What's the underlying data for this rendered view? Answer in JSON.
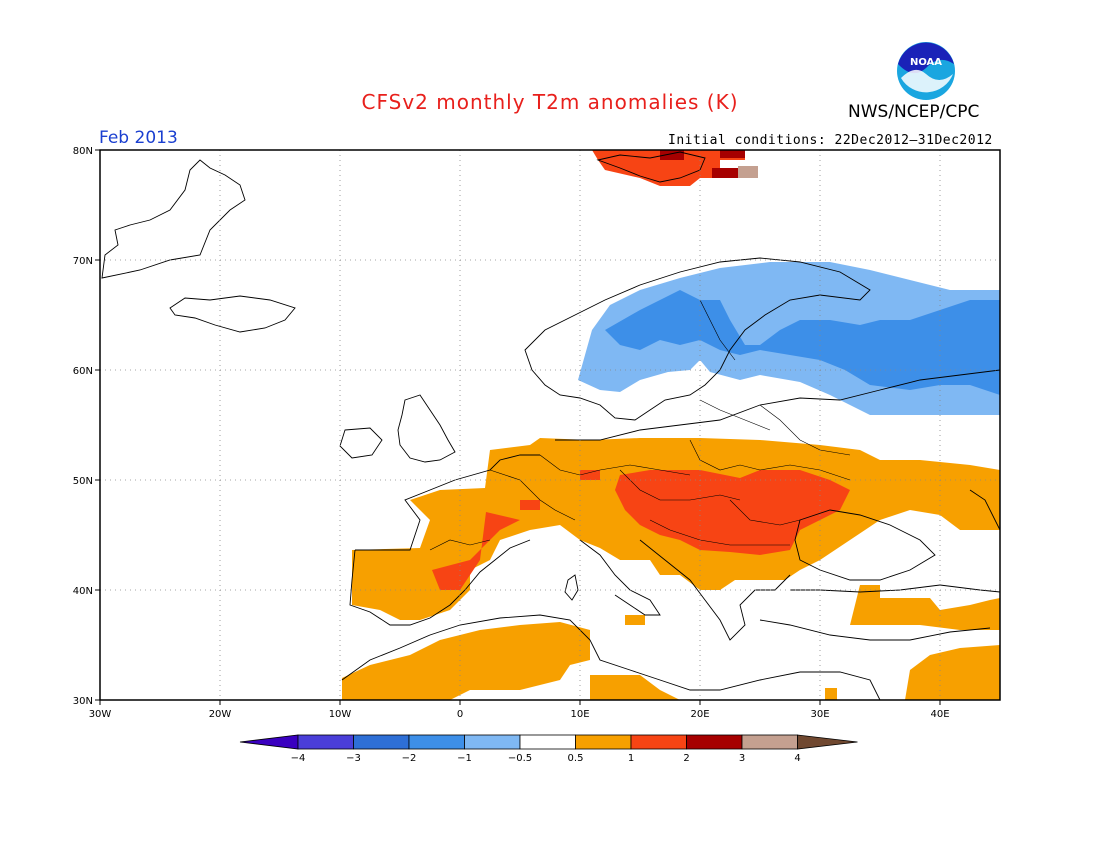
{
  "title": "CFSv2 monthly T2m anomalies (K)",
  "agency": "NWS/NCEP/CPC",
  "logo_text": "NOAA",
  "period": "Feb 2013",
  "initial_conditions": "Initial conditions: 22Dec2012–31Dec2012",
  "lon_ticks": [
    "30W",
    "20W",
    "10W",
    "0",
    "10E",
    "20E",
    "30E",
    "40E"
  ],
  "lat_ticks": [
    "30N",
    "40N",
    "50N",
    "60N",
    "70N",
    "80N"
  ],
  "colorbar": {
    "ticks": [
      "−4",
      "−3",
      "−2",
      "−1",
      "−0.5",
      "0.5",
      "1",
      "2",
      "3",
      "4"
    ],
    "colors": [
      "#3a00c0",
      "#4a3ed8",
      "#2e6fd6",
      "#3d8fe8",
      "#7fb8f3",
      "#ffffff",
      "#f7a000",
      "#f74414",
      "#a60000",
      "#c4a090",
      "#704830"
    ]
  },
  "map_extent": {
    "lon_min": -30,
    "lon_max": 45,
    "lat_min": 30,
    "lat_max": 80
  }
}
